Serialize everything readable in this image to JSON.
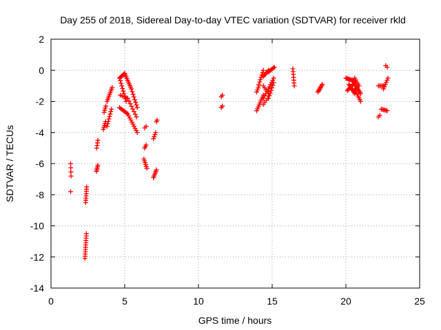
{
  "chart_data": {
    "type": "scatter",
    "title": "Day 255 of 2018, Sidereal Day-to-day VTEC variation (SDTVAR) for receiver rkld",
    "xlabel": "GPS time / hours",
    "ylabel": "SDTVAR / TECUs",
    "xlim": [
      0,
      25
    ],
    "ylim": [
      -14,
      2
    ],
    "xticks": [
      0,
      5,
      10,
      15,
      20,
      25
    ],
    "yticks": [
      -14,
      -12,
      -10,
      -8,
      -6,
      -4,
      -2,
      0,
      2
    ],
    "xtick_labels": [
      "0",
      "5",
      "10",
      "15",
      "20",
      "25"
    ],
    "ytick_labels": [
      "-14",
      "-12",
      "-10",
      "-8",
      "-6",
      "-4",
      "-2",
      "0",
      "2"
    ],
    "grid": true,
    "marker": "plus",
    "color": "#ff0000",
    "segments": [
      {
        "t0": 1.33,
        "t1": 1.36,
        "v0": -6.0,
        "v1": -6.8,
        "n": 4
      },
      {
        "t0": 1.33,
        "t1": 1.34,
        "v0": -7.8,
        "v1": -7.8,
        "n": 1
      },
      {
        "t0": 2.3,
        "t1": 2.4,
        "v0": -12.1,
        "v1": -10.5,
        "n": 12
      },
      {
        "t0": 2.35,
        "t1": 2.42,
        "v0": -8.5,
        "v1": -7.5,
        "n": 8
      },
      {
        "t0": 3.08,
        "t1": 3.18,
        "v0": -6.5,
        "v1": -6.1,
        "n": 5
      },
      {
        "t0": 3.1,
        "t1": 3.18,
        "v0": -5.0,
        "v1": -4.5,
        "n": 4
      },
      {
        "t0": 3.55,
        "t1": 3.7,
        "v0": -3.8,
        "v1": -3.3,
        "n": 5
      },
      {
        "t0": 3.6,
        "t1": 3.72,
        "v0": -2.7,
        "v1": -2.3,
        "n": 4
      },
      {
        "t0": 3.8,
        "t1": 4.1,
        "v0": -3.6,
        "v1": -2.5,
        "n": 8
      },
      {
        "t0": 3.8,
        "t1": 4.15,
        "v0": -2.0,
        "v1": -1.1,
        "n": 9
      },
      {
        "t0": 4.65,
        "t1": 5.0,
        "v0": -0.5,
        "v1": -0.2,
        "n": 8
      },
      {
        "t0": 5.0,
        "t1": 5.45,
        "v0": -0.2,
        "v1": -1.2,
        "n": 10
      },
      {
        "t0": 5.45,
        "t1": 5.85,
        "v0": -1.2,
        "v1": -2.4,
        "n": 8
      },
      {
        "t0": 4.65,
        "t1": 5.1,
        "v0": -0.5,
        "v1": -2.0,
        "n": 10
      },
      {
        "t0": 4.7,
        "t1": 5.2,
        "v0": -1.6,
        "v1": -1.8,
        "n": 5
      },
      {
        "t0": 5.2,
        "t1": 5.8,
        "v0": -1.8,
        "v1": -3.0,
        "n": 8
      },
      {
        "t0": 4.65,
        "t1": 5.2,
        "v0": -2.4,
        "v1": -2.8,
        "n": 8
      },
      {
        "t0": 5.2,
        "t1": 5.85,
        "v0": -2.8,
        "v1": -4.0,
        "n": 10
      },
      {
        "t0": 6.35,
        "t1": 6.45,
        "v0": -5.0,
        "v1": -4.8,
        "n": 3
      },
      {
        "t0": 6.35,
        "t1": 6.45,
        "v0": -3.7,
        "v1": -3.6,
        "n": 2
      },
      {
        "t0": 6.3,
        "t1": 6.5,
        "v0": -5.7,
        "v1": -6.3,
        "n": 6
      },
      {
        "t0": 6.95,
        "t1": 7.1,
        "v0": -4.4,
        "v1": -4.0,
        "n": 4
      },
      {
        "t0": 7.15,
        "t1": 7.2,
        "v0": -3.3,
        "v1": -3.2,
        "n": 2
      },
      {
        "t0": 6.95,
        "t1": 7.15,
        "v0": -6.9,
        "v1": -6.4,
        "n": 6
      },
      {
        "t0": 11.55,
        "t1": 11.62,
        "v0": -1.7,
        "v1": -1.6,
        "n": 2
      },
      {
        "t0": 11.55,
        "t1": 11.62,
        "v0": -2.4,
        "v1": -2.3,
        "n": 2
      },
      {
        "t0": 13.95,
        "t1": 14.4,
        "v0": -2.6,
        "v1": -1.6,
        "n": 9
      },
      {
        "t0": 13.95,
        "t1": 14.1,
        "v0": -1.4,
        "v1": -1.0,
        "n": 4
      },
      {
        "t0": 14.1,
        "t1": 14.4,
        "v0": -0.9,
        "v1": 0.0,
        "n": 7
      },
      {
        "t0": 14.4,
        "t1": 14.75,
        "v0": -0.4,
        "v1": 0.0,
        "n": 6
      },
      {
        "t0": 14.4,
        "t1": 14.75,
        "v0": -1.0,
        "v1": -1.5,
        "n": 5
      },
      {
        "t0": 14.4,
        "t1": 14.75,
        "v0": -1.8,
        "v1": -1.2,
        "n": 5
      },
      {
        "t0": 14.4,
        "t1": 14.7,
        "v0": -2.2,
        "v1": -1.8,
        "n": 4
      },
      {
        "t0": 14.75,
        "t1": 15.15,
        "v0": -0.1,
        "v1": 0.2,
        "n": 7
      },
      {
        "t0": 14.75,
        "t1": 15.1,
        "v0": -1.8,
        "v1": -0.8,
        "n": 7
      },
      {
        "t0": 14.75,
        "t1": 15.1,
        "v0": -1.2,
        "v1": -0.5,
        "n": 6
      },
      {
        "t0": 16.4,
        "t1": 16.5,
        "v0": 0.1,
        "v1": -1.0,
        "n": 7
      },
      {
        "t0": 18.1,
        "t1": 18.4,
        "v0": -1.4,
        "v1": -0.9,
        "n": 8
      },
      {
        "t0": 20.0,
        "t1": 20.6,
        "v0": -0.5,
        "v1": -0.7,
        "n": 10
      },
      {
        "t0": 20.1,
        "t1": 20.5,
        "v0": -1.3,
        "v1": -0.9,
        "n": 8
      },
      {
        "t0": 20.2,
        "t1": 20.6,
        "v0": -0.9,
        "v1": -1.5,
        "n": 8
      },
      {
        "t0": 20.5,
        "t1": 21.0,
        "v0": -0.7,
        "v1": -1.5,
        "n": 10
      },
      {
        "t0": 20.6,
        "t1": 21.0,
        "v0": -1.2,
        "v1": -2.0,
        "n": 8
      },
      {
        "t0": 20.6,
        "t1": 20.9,
        "v0": -0.5,
        "v1": -1.0,
        "n": 5
      },
      {
        "t0": 22.2,
        "t1": 22.3,
        "v0": -3.0,
        "v1": -2.9,
        "n": 2
      },
      {
        "t0": 22.2,
        "t1": 22.55,
        "v0": -1.0,
        "v1": -1.0,
        "n": 5
      },
      {
        "t0": 22.4,
        "t1": 22.8,
        "v0": -2.5,
        "v1": -2.6,
        "n": 6
      },
      {
        "t0": 22.55,
        "t1": 22.85,
        "v0": -1.2,
        "v1": -0.5,
        "n": 6
      },
      {
        "t0": 22.7,
        "t1": 22.8,
        "v0": 0.3,
        "v1": 0.2,
        "n": 2
      }
    ]
  }
}
